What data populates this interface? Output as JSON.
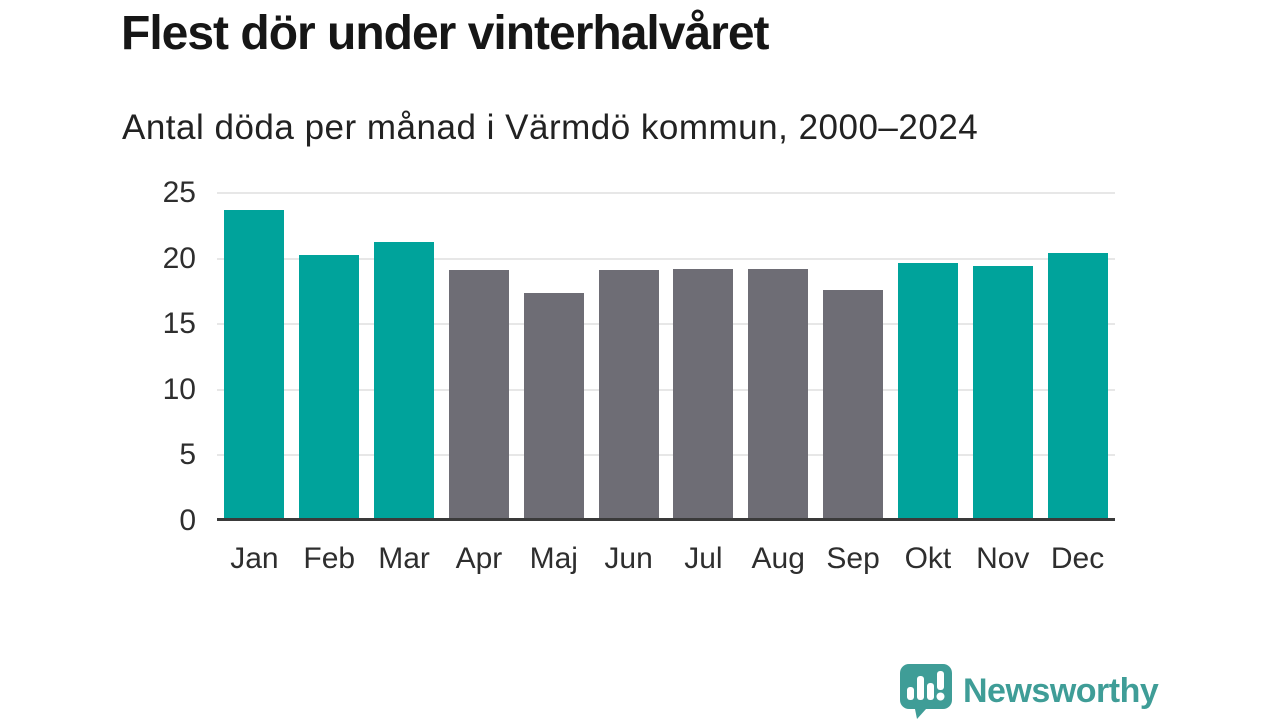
{
  "title": "Flest dör under vinterhalvåret",
  "subtitle": "Antal döda per månad i Värmdö kommun, 2000–2024",
  "chart_data": {
    "type": "bar",
    "categories": [
      "Jan",
      "Feb",
      "Mar",
      "Apr",
      "Maj",
      "Jun",
      "Jul",
      "Aug",
      "Sep",
      "Okt",
      "Nov",
      "Dec"
    ],
    "values": [
      23.7,
      20.3,
      21.3,
      19.1,
      17.4,
      19.1,
      19.2,
      19.2,
      17.6,
      19.7,
      19.4,
      20.4
    ],
    "bar_color_keys": [
      "highlight",
      "highlight",
      "highlight",
      "muted",
      "muted",
      "muted",
      "muted",
      "muted",
      "muted",
      "highlight",
      "highlight",
      "highlight"
    ],
    "title": "Flest dör under vinterhalvåret",
    "subtitle": "Antal döda per månad i Värmdö kommun, 2000–2024",
    "xlabel": "",
    "ylabel": "",
    "ylim": [
      0,
      25
    ],
    "yticks": [
      0,
      5,
      10,
      15,
      20,
      25
    ],
    "grid": true,
    "legend": false
  },
  "colors": {
    "highlight": "#00a39b",
    "muted": "#6e6d75",
    "grid": "#e7e7e7",
    "axis": "#3a3a3a",
    "tick_text": "#2e2e2e",
    "title_text": "#161616",
    "logo": "#3f9d97"
  },
  "branding": {
    "logo_text": "Newsworthy",
    "logo_icon": "bar-chart-speech-bubble-icon"
  }
}
